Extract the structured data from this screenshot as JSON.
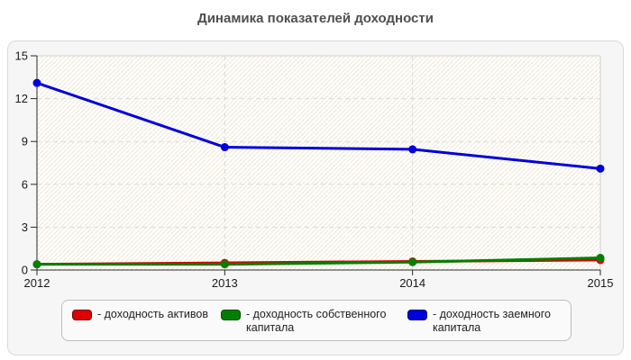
{
  "title": "Динамика показателей доходности",
  "chart_data": {
    "type": "line",
    "x": [
      "2012",
      "2013",
      "2014",
      "2015"
    ],
    "series": [
      {
        "name": "доходность активов",
        "color": "#dd0000",
        "values": [
          0.4,
          0.5,
          0.6,
          0.7
        ]
      },
      {
        "name": "доходность собственного капитала",
        "color": "#008000",
        "values": [
          0.4,
          0.4,
          0.55,
          0.85
        ]
      },
      {
        "name": "доходность заемного капитала",
        "color": "#0000dd",
        "values": [
          13.1,
          8.6,
          8.45,
          7.1
        ]
      }
    ],
    "ylim": [
      0,
      15
    ],
    "yticks": [
      "0",
      "3",
      "6",
      "9",
      "12",
      "15"
    ],
    "grid": true,
    "legend_position": "bottom"
  },
  "legend": {
    "items": [
      {
        "label": "- доходность активов",
        "color": "#dd0000"
      },
      {
        "label": "- доходность собственного капитала",
        "color": "#008000"
      },
      {
        "label": "- доходность заемного капитала",
        "color": "#0000dd"
      }
    ]
  },
  "style_colors": {
    "axis": "#2a2a2a",
    "gridline": "#d9d9d9",
    "plot_border_light": "#d0d0d0",
    "hatch": "#f0ead9",
    "tick_label": "#1a1a1a"
  }
}
